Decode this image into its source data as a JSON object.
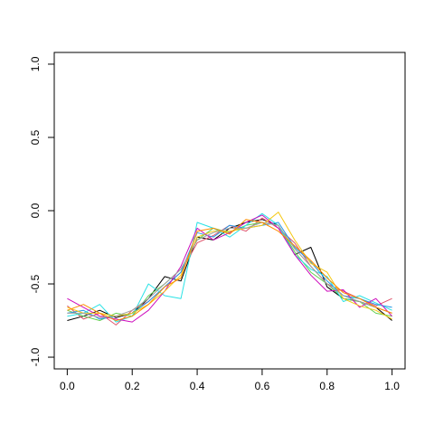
{
  "chart_data": {
    "type": "line",
    "x": [
      0,
      0.05,
      0.1,
      0.15,
      0.2,
      0.25,
      0.3,
      0.35,
      0.4,
      0.45,
      0.5,
      0.55,
      0.6,
      0.65,
      0.7,
      0.75,
      0.8,
      0.85,
      0.9,
      0.95,
      1
    ],
    "series": [
      {
        "color": "#000000",
        "values": [
          -0.75,
          -0.72,
          -0.68,
          -0.73,
          -0.7,
          -0.6,
          -0.45,
          -0.48,
          -0.18,
          -0.2,
          -0.12,
          -0.08,
          -0.06,
          -0.1,
          -0.3,
          -0.25,
          -0.52,
          -0.6,
          -0.62,
          -0.66,
          -0.75
        ]
      },
      {
        "color": "#df536b",
        "values": [
          -0.65,
          -0.74,
          -0.7,
          -0.78,
          -0.68,
          -0.62,
          -0.52,
          -0.42,
          -0.22,
          -0.17,
          -0.1,
          -0.14,
          -0.05,
          -0.12,
          -0.22,
          -0.38,
          -0.5,
          -0.55,
          -0.6,
          -0.65,
          -0.6
        ]
      },
      {
        "color": "#61d04f",
        "values": [
          -0.68,
          -0.72,
          -0.75,
          -0.7,
          -0.72,
          -0.58,
          -0.5,
          -0.4,
          -0.2,
          -0.12,
          -0.15,
          -0.1,
          -0.08,
          -0.1,
          -0.28,
          -0.42,
          -0.5,
          -0.6,
          -0.62,
          -0.7,
          -0.72
        ]
      },
      {
        "color": "#2297e6",
        "values": [
          -0.7,
          -0.68,
          -0.74,
          -0.72,
          -0.7,
          -0.62,
          -0.52,
          -0.42,
          -0.15,
          -0.18,
          -0.1,
          -0.12,
          -0.1,
          -0.08,
          -0.25,
          -0.35,
          -0.48,
          -0.58,
          -0.6,
          -0.64,
          -0.66
        ]
      },
      {
        "color": "#28e2e5",
        "values": [
          -0.72,
          -0.7,
          -0.64,
          -0.76,
          -0.72,
          -0.5,
          -0.58,
          -0.6,
          -0.08,
          -0.12,
          -0.18,
          -0.1,
          -0.02,
          -0.1,
          -0.3,
          -0.4,
          -0.45,
          -0.62,
          -0.58,
          -0.63,
          -0.68
        ]
      },
      {
        "color": "#cd0bbc",
        "values": [
          -0.6,
          -0.66,
          -0.72,
          -0.74,
          -0.76,
          -0.68,
          -0.55,
          -0.38,
          -0.12,
          -0.2,
          -0.15,
          -0.08,
          -0.03,
          -0.12,
          -0.3,
          -0.44,
          -0.55,
          -0.54,
          -0.66,
          -0.6,
          -0.72
        ]
      },
      {
        "color": "#f5c710",
        "values": [
          -0.66,
          -0.7,
          -0.7,
          -0.72,
          -0.7,
          -0.64,
          -0.55,
          -0.44,
          -0.18,
          -0.14,
          -0.14,
          -0.12,
          -0.1,
          -0.01,
          -0.2,
          -0.36,
          -0.42,
          -0.6,
          -0.65,
          -0.68,
          -0.74
        ]
      },
      {
        "color": "#9e9e9e",
        "values": [
          -0.7,
          -0.7,
          -0.73,
          -0.72,
          -0.68,
          -0.6,
          -0.5,
          -0.4,
          -0.2,
          -0.15,
          -0.12,
          -0.12,
          -0.08,
          -0.1,
          -0.26,
          -0.38,
          -0.5,
          -0.58,
          -0.62,
          -0.66,
          -0.7
        ]
      },
      {
        "color": "#ff8c00",
        "values": [
          -0.68,
          -0.64,
          -0.7,
          -0.75,
          -0.72,
          -0.64,
          -0.52,
          -0.46,
          -0.14,
          -0.12,
          -0.16,
          -0.06,
          -0.08,
          -0.14,
          -0.24,
          -0.34,
          -0.46,
          -0.56,
          -0.6,
          -0.66,
          -0.7
        ]
      }
    ],
    "xlim": [
      -0.04,
      1.04
    ],
    "ylim": [
      -1.08,
      1.08
    ],
    "xticks": [
      {
        "value": 0,
        "label": "0.0"
      },
      0.2,
      0.4,
      0.6,
      0.8,
      {
        "value": 1,
        "label": "1.0"
      }
    ],
    "yticks": [
      {
        "value": -1,
        "label": "-1.0"
      },
      -0.5,
      {
        "value": 0,
        "label": "0.0"
      },
      0.5,
      {
        "value": 1,
        "label": "1.0"
      }
    ]
  }
}
